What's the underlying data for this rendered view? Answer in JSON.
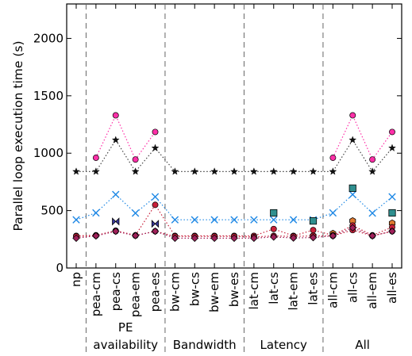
{
  "chart_data": {
    "type": "line",
    "ylabel": "Parallel loop execution time (s)",
    "ylim": [
      0,
      2300
    ],
    "yticks": [
      0,
      500,
      1000,
      1500,
      2000
    ],
    "grid": false,
    "legend": "none",
    "categories": [
      "np",
      "pea-cm",
      "pea-cs",
      "pea-em",
      "pea-es",
      "bw-cm",
      "bw-cs",
      "bw-em",
      "bw-es",
      "lat-cm",
      "lat-cs",
      "lat-em",
      "lat-es",
      "all-cm",
      "all-cs",
      "all-em",
      "all-es"
    ],
    "groups": [
      {
        "line1": "PE",
        "line2": "availability",
        "start": 1,
        "end": 4
      },
      {
        "line1": "",
        "line2": "Bandwidth",
        "start": 5,
        "end": 8
      },
      {
        "line1": "",
        "line2": "Latency",
        "start": 9,
        "end": 12
      },
      {
        "line1": "",
        "line2": "All",
        "start": 13,
        "end": 16
      }
    ],
    "separators_after": [
      0,
      4,
      8,
      12
    ],
    "series": [
      {
        "marker": "circle",
        "color": "#ff2fa8",
        "line": true,
        "values": [
          null,
          960,
          1330,
          945,
          1185,
          null,
          null,
          null,
          null,
          null,
          null,
          null,
          null,
          960,
          1330,
          945,
          1185
        ]
      },
      {
        "marker": "star",
        "color": "#444444",
        "line": true,
        "values": [
          840,
          840,
          1115,
          840,
          1045,
          840,
          840,
          840,
          840,
          840,
          840,
          840,
          840,
          840,
          1115,
          840,
          1045
        ]
      },
      {
        "marker": "x",
        "color": "#1e88e5",
        "line": true,
        "values": [
          420,
          480,
          640,
          478,
          620,
          420,
          420,
          420,
          420,
          420,
          420,
          420,
          420,
          480,
          640,
          478,
          620
        ]
      },
      {
        "marker": "square",
        "color": "#2f8f8f",
        "line": false,
        "values": [
          null,
          null,
          null,
          null,
          null,
          null,
          null,
          null,
          null,
          null,
          480,
          null,
          410,
          null,
          695,
          null,
          480
        ]
      },
      {
        "marker": "bowtie",
        "color": "#3a3aa0",
        "line": false,
        "values": [
          null,
          null,
          405,
          null,
          385,
          null,
          null,
          null,
          null,
          null,
          null,
          null,
          null,
          null,
          null,
          null,
          null
        ]
      },
      {
        "marker": "hexagon",
        "color": "#e07a30",
        "line": false,
        "values": [
          null,
          null,
          null,
          null,
          null,
          null,
          null,
          null,
          null,
          null,
          null,
          null,
          280,
          300,
          410,
          null,
          390
        ]
      },
      {
        "marker": "circle",
        "color": "#c8203a",
        "line": true,
        "values": [
          280,
          285,
          325,
          285,
          550,
          280,
          280,
          280,
          280,
          280,
          340,
          280,
          330,
          285,
          370,
          285,
          355
        ]
      },
      {
        "marker": "circle",
        "color": "#c8203a",
        "line": true,
        "values": [
          275,
          282,
          320,
          282,
          320,
          275,
          275,
          275,
          275,
          270,
          280,
          275,
          280,
          280,
          330,
          280,
          320
        ]
      },
      {
        "marker": "diamond",
        "color": "#a0205a",
        "line": true,
        "values": [
          260,
          280,
          320,
          282,
          320,
          260,
          260,
          260,
          260,
          260,
          270,
          262,
          265,
          280,
          350,
          280,
          320
        ]
      }
    ]
  }
}
